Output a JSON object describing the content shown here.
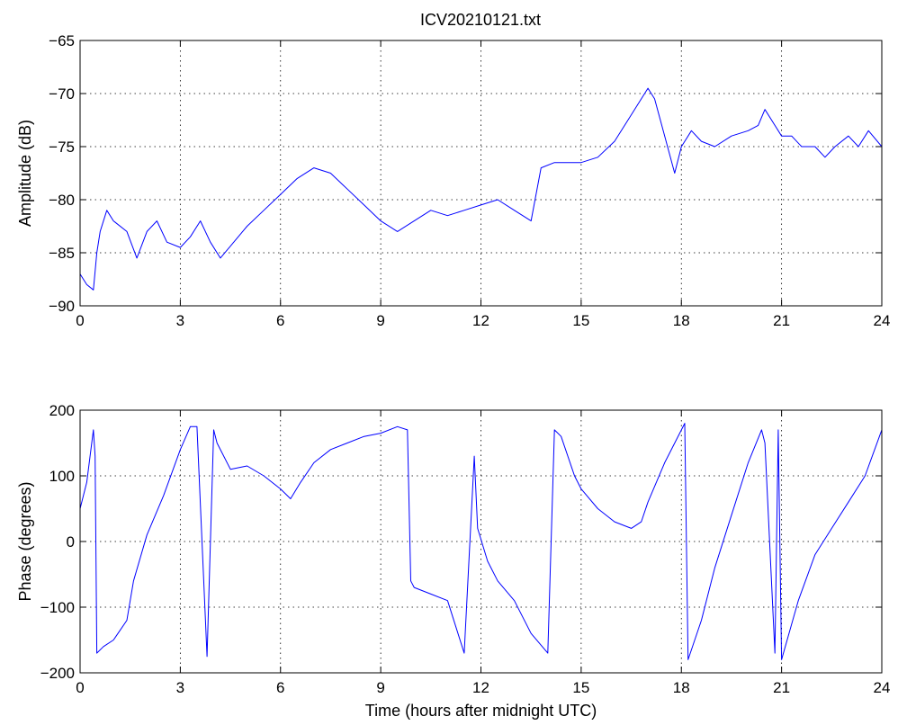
{
  "title": "ICV20210121.txt",
  "chart_data": [
    {
      "type": "line",
      "title": "ICV20210121.txt",
      "xlabel": "",
      "ylabel": "Amplitude (dB)",
      "xlim": [
        0,
        24
      ],
      "ylim": [
        -90,
        -65
      ],
      "xticks": [
        "0",
        "3",
        "6",
        "9",
        "12",
        "15",
        "18",
        "21",
        "24"
      ],
      "yticks": [
        "-65",
        "-70",
        "-75",
        "-80",
        "-85",
        "-90"
      ],
      "grid": true,
      "series": [
        {
          "color": "#0000ff",
          "x": [
            0.0,
            0.2,
            0.4,
            0.5,
            0.6,
            0.8,
            1.0,
            1.4,
            1.7,
            2.0,
            2.3,
            2.6,
            3.0,
            3.3,
            3.6,
            3.9,
            4.2,
            4.6,
            5.0,
            5.5,
            6.0,
            6.5,
            7.0,
            7.5,
            8.0,
            8.5,
            9.0,
            9.5,
            10.0,
            10.5,
            11.0,
            11.5,
            12.0,
            12.5,
            13.0,
            13.5,
            13.8,
            14.2,
            14.6,
            15.0,
            15.5,
            16.0,
            16.5,
            17.0,
            17.2,
            17.5,
            17.8,
            18.0,
            18.3,
            18.6,
            19.0,
            19.5,
            20.0,
            20.3,
            20.5,
            20.8,
            21.0,
            21.3,
            21.6,
            22.0,
            22.3,
            22.6,
            23.0,
            23.3,
            23.6,
            24.0
          ],
          "y": [
            -87,
            -88,
            -88.5,
            -85,
            -83,
            -81,
            -82,
            -83,
            -85.5,
            -83,
            -82,
            -84,
            -84.5,
            -83.5,
            -82,
            -84,
            -85.5,
            -84,
            -82.5,
            -81,
            -79.5,
            -78,
            -77,
            -77.5,
            -79,
            -80.5,
            -82,
            -83,
            -82,
            -81,
            -81.5,
            -81,
            -80.5,
            -80,
            -81,
            -82,
            -77,
            -76.5,
            -76.5,
            -76.5,
            -76,
            -74.5,
            -72,
            -69.5,
            -70.5,
            -74,
            -77.5,
            -75,
            -73.5,
            -74.5,
            -75,
            -74,
            -73.5,
            -73,
            -71.5,
            -73,
            -74,
            -74,
            -75,
            -75,
            -76,
            -75,
            -74,
            -75,
            -73.5,
            -75
          ]
        }
      ]
    },
    {
      "type": "line",
      "xlabel": "Time (hours after midnight UTC)",
      "ylabel": "Phase (degrees)",
      "xlim": [
        0,
        24
      ],
      "ylim": [
        -200,
        200
      ],
      "xticks": [
        "0",
        "3",
        "6",
        "9",
        "12",
        "15",
        "18",
        "21",
        "24"
      ],
      "yticks": [
        "200",
        "100",
        "0",
        "-100",
        "-200"
      ],
      "grid": true,
      "series": [
        {
          "color": "#0000ff",
          "x": [
            0.0,
            0.2,
            0.4,
            0.45,
            0.5,
            0.7,
            1.0,
            1.4,
            1.6,
            2.0,
            2.5,
            3.0,
            3.3,
            3.5,
            3.8,
            4.0,
            4.1,
            4.5,
            5.0,
            5.5,
            6.0,
            6.3,
            6.6,
            7.0,
            7.5,
            8.0,
            8.5,
            9.0,
            9.5,
            9.8,
            9.9,
            10.0,
            10.5,
            11.0,
            11.5,
            11.8,
            11.9,
            12.2,
            12.5,
            13.0,
            13.5,
            14.0,
            14.2,
            14.4,
            14.8,
            15.0,
            15.5,
            16.0,
            16.5,
            16.8,
            17.0,
            17.5,
            18.0,
            18.1,
            18.2,
            18.6,
            19.0,
            19.5,
            20.0,
            20.4,
            20.5,
            20.8,
            20.9,
            21.0,
            21.5,
            22.0,
            22.5,
            23.0,
            23.5,
            24.0
          ],
          "y": [
            50,
            90,
            170,
            130,
            -170,
            -160,
            -150,
            -120,
            -60,
            10,
            70,
            140,
            175,
            175,
            -175,
            170,
            150,
            110,
            115,
            100,
            80,
            65,
            90,
            120,
            140,
            150,
            160,
            165,
            175,
            170,
            -60,
            -70,
            -80,
            -90,
            -170,
            130,
            20,
            -30,
            -60,
            -90,
            -140,
            -170,
            170,
            160,
            100,
            80,
            50,
            30,
            20,
            30,
            60,
            120,
            170,
            180,
            -180,
            -120,
            -40,
            40,
            120,
            170,
            150,
            -170,
            170,
            -180,
            -90,
            -20,
            20,
            60,
            100,
            170
          ]
        }
      ]
    }
  ]
}
